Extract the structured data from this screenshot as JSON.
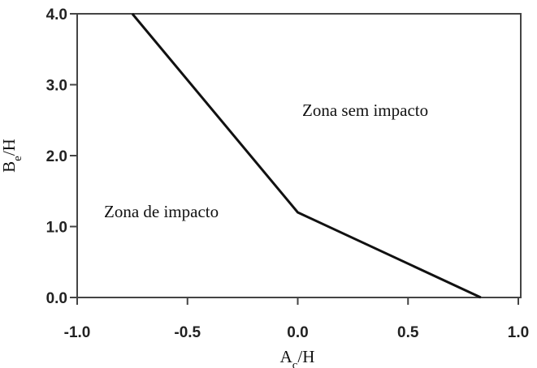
{
  "chart_data": {
    "type": "line",
    "x": [
      -0.75,
      0.0,
      0.83
    ],
    "series": [
      {
        "color": "#111111",
        "values": [
          4.0,
          1.2,
          0.0
        ]
      }
    ],
    "xlim": [
      -1.0,
      1.0
    ],
    "ylim": [
      0.0,
      4.0
    ],
    "xticks": [
      {
        "value": -1.0,
        "label": "-1.0"
      },
      {
        "value": -0.5,
        "label": "-0.5"
      },
      {
        "value": 0.0,
        "label": "0.0"
      },
      {
        "value": 0.5,
        "label": "0.5"
      },
      {
        "value": 1.0,
        "label": "1.0"
      }
    ],
    "yticks": [
      {
        "value": 0.0,
        "label": "0.0"
      },
      {
        "value": 1.0,
        "label": "1.0"
      },
      {
        "value": 2.0,
        "label": "2.0"
      },
      {
        "value": 3.0,
        "label": "3.0"
      },
      {
        "value": 4.0,
        "label": "4.0"
      }
    ],
    "xlabel": [
      "A",
      "c",
      "/H"
    ],
    "ylabel": [
      "B",
      "e",
      "/H"
    ],
    "annotations": [
      "Zona sem impacto",
      "Zona de impacto"
    ]
  }
}
